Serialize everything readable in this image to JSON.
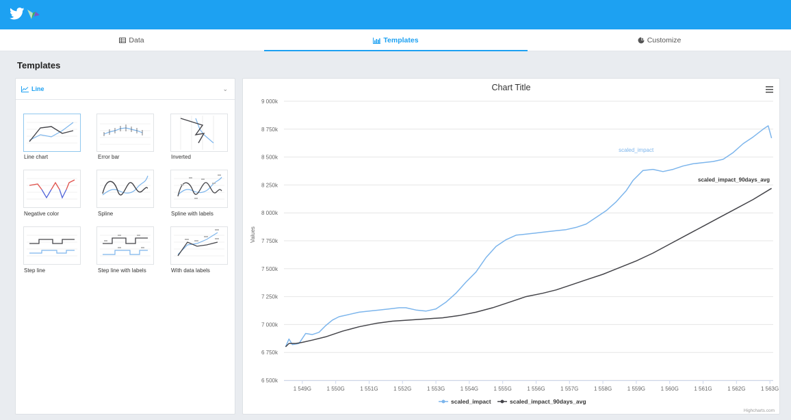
{
  "header": {
    "logo_icon": "twitter-bird-icon",
    "brand_icon": "chart-brand-icon",
    "color": "#1da1f2"
  },
  "tabs": [
    {
      "label": "Data",
      "icon": "table-icon"
    },
    {
      "label": "Templates",
      "icon": "bar-chart-icon"
    },
    {
      "label": "Customize",
      "icon": "palette-icon"
    }
  ],
  "page": {
    "heading": "Templates"
  },
  "template_select": {
    "selected": "Line",
    "icon": "line-chart-icon"
  },
  "templates": [
    {
      "label": "Line chart"
    },
    {
      "label": "Error bar"
    },
    {
      "label": "Inverted"
    },
    {
      "label": "Negative color"
    },
    {
      "label": "Spline"
    },
    {
      "label": "Spline with labels"
    },
    {
      "label": "Step line"
    },
    {
      "label": "Step line with labels"
    },
    {
      "label": "With data labels"
    }
  ],
  "chart": {
    "menu_icon": "hamburger-menu-icon",
    "credits": "Highcharts.com"
  },
  "chart_data": {
    "type": "line",
    "title": "Chart Title",
    "ylabel": "Values",
    "xlabel": "",
    "ylim": [
      6500000,
      9000000
    ],
    "yticks": [
      6500000,
      6750000,
      7000000,
      7250000,
      7500000,
      7750000,
      8000000,
      8250000,
      8500000,
      8750000,
      9000000
    ],
    "ytick_labels": [
      "6 500k",
      "6 750k",
      "7 000k",
      "7 250k",
      "7 500k",
      "7 750k",
      "8 000k",
      "8 250k",
      "8 500k",
      "8 750k",
      "9 000k"
    ],
    "xlim": [
      1548450000000,
      1563100000000
    ],
    "xticks": [
      1549000000000,
      1550000000000,
      1551000000000,
      1552000000000,
      1553000000000,
      1554000000000,
      1555000000000,
      1556000000000,
      1557000000000,
      1558000000000,
      1559000000000,
      1560000000000,
      1561000000000,
      1562000000000,
      1563000000000
    ],
    "xtick_labels": [
      "1 549G",
      "1 550G",
      "1 551G",
      "1 552G",
      "1 553G",
      "1 554G",
      "1 555G",
      "1 556G",
      "1 557G",
      "1 558G",
      "1 559G",
      "1 560G",
      "1 561G",
      "1 562G",
      "1 563G"
    ],
    "grid": true,
    "legend_position": "bottom-center",
    "series": [
      {
        "name": "scaled_impact",
        "color": "#7cb5ec",
        "x": [
          1548500000000,
          1548600000000,
          1548700000000,
          1548900000000,
          1549100000000,
          1549300000000,
          1549500000000,
          1549700000000,
          1549900000000,
          1550100000000,
          1550400000000,
          1550700000000,
          1551000000000,
          1551300000000,
          1551600000000,
          1551900000000,
          1552100000000,
          1552400000000,
          1552700000000,
          1553000000000,
          1553300000000,
          1553600000000,
          1553900000000,
          1554200000000,
          1554500000000,
          1554800000000,
          1555100000000,
          1555400000000,
          1555700000000,
          1556000000000,
          1556300000000,
          1556600000000,
          1556900000000,
          1557200000000,
          1557500000000,
          1557800000000,
          1558100000000,
          1558400000000,
          1558700000000,
          1558900000000,
          1559200000000,
          1559500000000,
          1559800000000,
          1560100000000,
          1560400000000,
          1560700000000,
          1561000000000,
          1561300000000,
          1561600000000,
          1561900000000,
          1562200000000,
          1562500000000,
          1562800000000,
          1562950000000,
          1563050000000
        ],
        "values": [
          6800000,
          6870000,
          6820000,
          6830000,
          6920000,
          6910000,
          6930000,
          6990000,
          7040000,
          7070000,
          7090000,
          7110000,
          7120000,
          7130000,
          7140000,
          7150000,
          7150000,
          7130000,
          7120000,
          7140000,
          7200000,
          7280000,
          7380000,
          7470000,
          7600000,
          7700000,
          7760000,
          7800000,
          7810000,
          7820000,
          7830000,
          7840000,
          7850000,
          7870000,
          7900000,
          7960000,
          8020000,
          8100000,
          8200000,
          8290000,
          8380000,
          8390000,
          8370000,
          8390000,
          8420000,
          8440000,
          8450000,
          8460000,
          8480000,
          8540000,
          8620000,
          8680000,
          8750000,
          8780000,
          8670000
        ],
        "label": "scaled_impact"
      },
      {
        "name": "scaled_impact_90days_avg",
        "color": "#434348",
        "x": [
          1548500000000,
          1548600000000,
          1548800000000,
          1549000000000,
          1549300000000,
          1549700000000,
          1550200000000,
          1550700000000,
          1551200000000,
          1551700000000,
          1552200000000,
          1552700000000,
          1553200000000,
          1553700000000,
          1554200000000,
          1554700000000,
          1555200000000,
          1555700000000,
          1556200000000,
          1556600000000,
          1557000000000,
          1557500000000,
          1558000000000,
          1558500000000,
          1559000000000,
          1559500000000,
          1560000000000,
          1560500000000,
          1561000000000,
          1561500000000,
          1562000000000,
          1562500000000,
          1563050000000
        ],
        "values": [
          6800000,
          6830000,
          6830000,
          6840000,
          6860000,
          6890000,
          6940000,
          6980000,
          7010000,
          7030000,
          7040000,
          7050000,
          7060000,
          7080000,
          7110000,
          7150000,
          7200000,
          7250000,
          7280000,
          7310000,
          7350000,
          7400000,
          7450000,
          7510000,
          7570000,
          7640000,
          7720000,
          7800000,
          7880000,
          7960000,
          8040000,
          8120000,
          8220000
        ],
        "label": "scaled_impact_90days_avg"
      }
    ]
  }
}
